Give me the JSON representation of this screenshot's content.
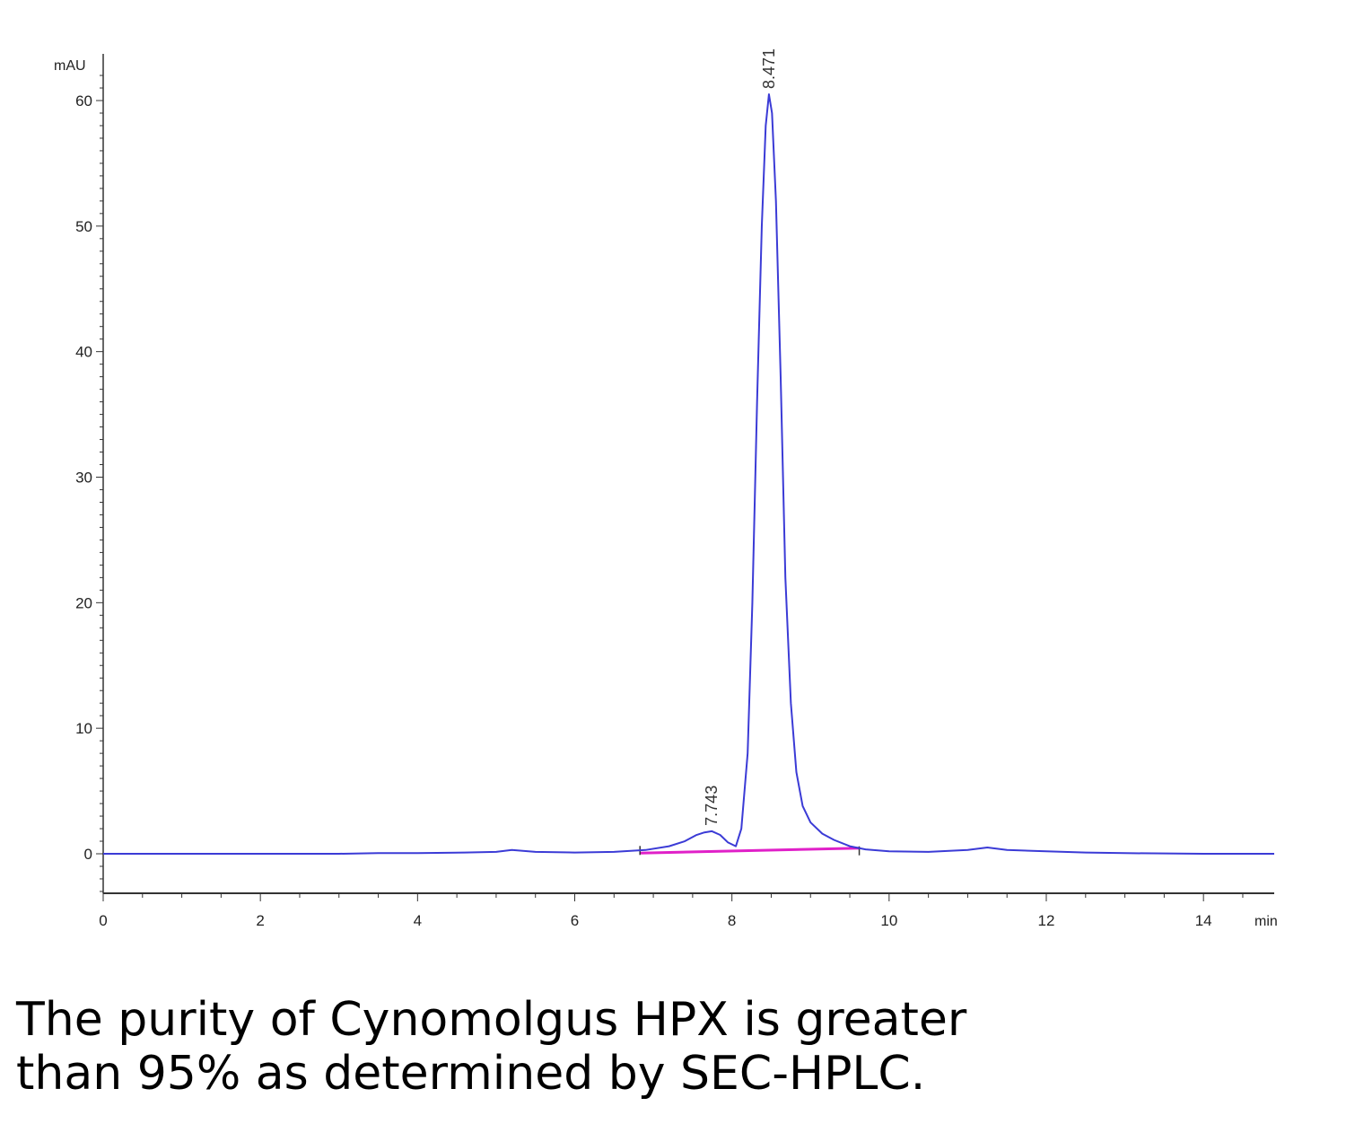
{
  "chart_data": {
    "type": "line",
    "xlabel": "min",
    "ylabel": "mAU",
    "xlim": [
      0,
      14.9
    ],
    "ylim": [
      -3,
      63
    ],
    "x_ticks": [
      0,
      2,
      4,
      6,
      8,
      10,
      12,
      14
    ],
    "y_ticks": [
      0,
      10,
      20,
      30,
      40,
      50,
      60
    ],
    "grid": false,
    "series": [
      {
        "color": "#3b3bd6",
        "x": [
          0,
          1,
          2,
          3,
          3.5,
          4,
          4.6,
          5.0,
          5.2,
          5.5,
          6.0,
          6.5,
          6.9,
          7.2,
          7.4,
          7.55,
          7.65,
          7.743,
          7.85,
          7.95,
          8.05,
          8.12,
          8.2,
          8.26,
          8.32,
          8.38,
          8.43,
          8.471,
          8.51,
          8.56,
          8.62,
          8.68,
          8.75,
          8.82,
          8.9,
          9.0,
          9.15,
          9.3,
          9.5,
          9.7,
          10.0,
          10.5,
          11.0,
          11.25,
          11.5,
          12.0,
          12.5,
          13.0,
          14.0,
          14.9
        ],
        "values": [
          0,
          0,
          0,
          0,
          0.05,
          0.05,
          0.1,
          0.15,
          0.3,
          0.15,
          0.1,
          0.15,
          0.3,
          0.6,
          1.0,
          1.5,
          1.7,
          1.8,
          1.5,
          0.9,
          0.6,
          2.0,
          8.0,
          20.0,
          36.0,
          50.0,
          58.0,
          60.5,
          59.0,
          52.0,
          38.0,
          22.0,
          12.0,
          6.5,
          3.8,
          2.5,
          1.6,
          1.1,
          0.6,
          0.35,
          0.2,
          0.15,
          0.3,
          0.5,
          0.3,
          0.2,
          0.1,
          0.05,
          0,
          0
        ]
      }
    ],
    "baseline": {
      "color": "#e020c8",
      "x": [
        6.83,
        9.62
      ],
      "values": [
        0.05,
        0.45
      ]
    },
    "peak_labels": [
      {
        "x": 7.743,
        "y": 1.8,
        "text": "7.743"
      },
      {
        "x": 8.471,
        "y": 60.5,
        "text": "8.471"
      }
    ]
  },
  "caption": {
    "line1": "The purity of Cynomolgus HPX is greater",
    "line2": "than 95% as determined by SEC-HPLC."
  }
}
